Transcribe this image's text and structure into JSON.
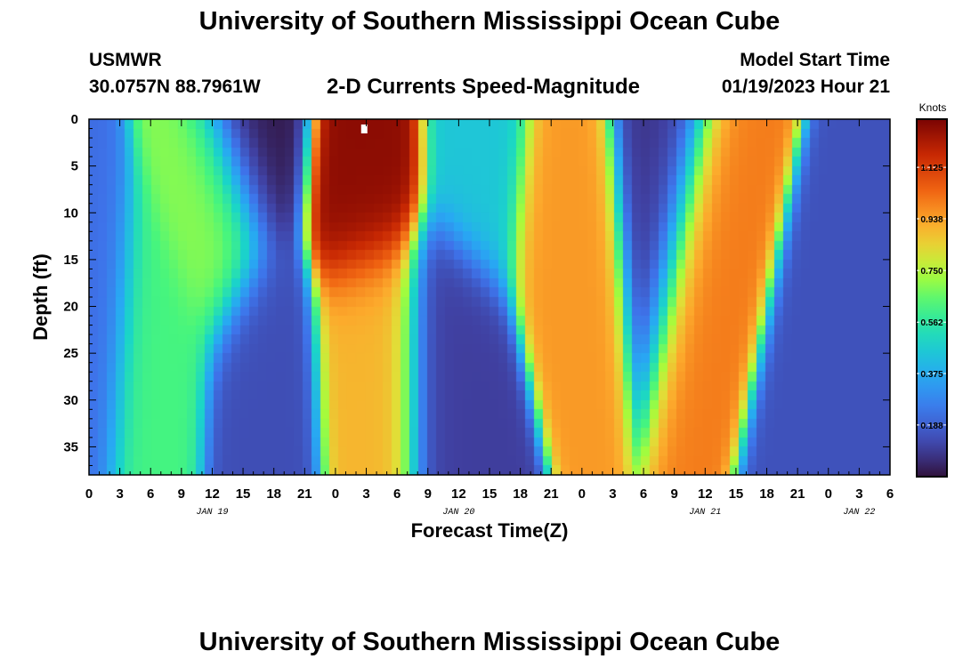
{
  "header": {
    "title": "University of Southern Mississippi Ocean Cube",
    "station": "USMWR",
    "coordinates": "30.0757N  88.7961W",
    "subtitle": "2-D Currents Speed-Magnitude",
    "model_start_label": "Model Start Time",
    "model_start_value": "01/19/2023 Hour 21",
    "footer_title": "University of Southern Mississippi Ocean Cube"
  },
  "chart_data": {
    "type": "heatmap",
    "title": "2-D Currents Speed-Magnitude",
    "xlabel": "Forecast Time(Z)",
    "ylabel": "Depth (ft)",
    "x_unit": "hours from JAN 19 00Z",
    "xlim": [
      0,
      78
    ],
    "ylim": [
      38,
      0
    ],
    "x_tick_labels": [
      "0",
      "3",
      "6",
      "9",
      "12",
      "15",
      "18",
      "21",
      "0",
      "3",
      "6",
      "9",
      "12",
      "15",
      "18",
      "21",
      "0",
      "3",
      "6",
      "9",
      "12",
      "15",
      "18",
      "21",
      "0",
      "3",
      "6"
    ],
    "x_date_labels": [
      {
        "label": "JAN 19",
        "hour": 12
      },
      {
        "label": "JAN 20",
        "hour": 36
      },
      {
        "label": "JAN 21",
        "hour": 60
      },
      {
        "label": "JAN 22",
        "hour": 75
      }
    ],
    "y_ticks": [
      0,
      5,
      10,
      15,
      20,
      25,
      30,
      35
    ],
    "colorbar": {
      "label": "Knots",
      "ticks": [
        "0.188",
        "0.375",
        "0.562",
        "0.750",
        "0.938",
        "1.125"
      ],
      "tick_values": [
        0.188,
        0.375,
        0.562,
        0.75,
        0.938,
        1.125
      ],
      "range": [
        0.0,
        1.3
      ],
      "colormap": "turbo"
    },
    "features": [
      {
        "hour": 0,
        "depth": 22,
        "value": 0.22
      },
      {
        "hour": 12,
        "depth": 10,
        "value": 0.7
      },
      {
        "hour": 6.5,
        "depth": 25,
        "value": 0.62
      },
      {
        "hour": 16,
        "depth": 0,
        "value": 0.02
      },
      {
        "hour": 16.5,
        "depth": 28,
        "value": 0.14
      },
      {
        "hour": 27,
        "depth": 5,
        "value": 1.27
      },
      {
        "hour": 28,
        "depth": 25,
        "value": 0.9
      },
      {
        "hour": 35,
        "depth": 25,
        "value": 0.1
      },
      {
        "hour": 38,
        "depth": 3,
        "value": 0.45
      },
      {
        "hour": 46.5,
        "depth": 8,
        "value": 0.95
      },
      {
        "hour": 56,
        "depth": 3,
        "value": 0.08
      },
      {
        "hour": 61,
        "depth": 10,
        "value": 1.0
      },
      {
        "hour": 72,
        "depth": 25,
        "value": 0.15
      }
    ]
  }
}
